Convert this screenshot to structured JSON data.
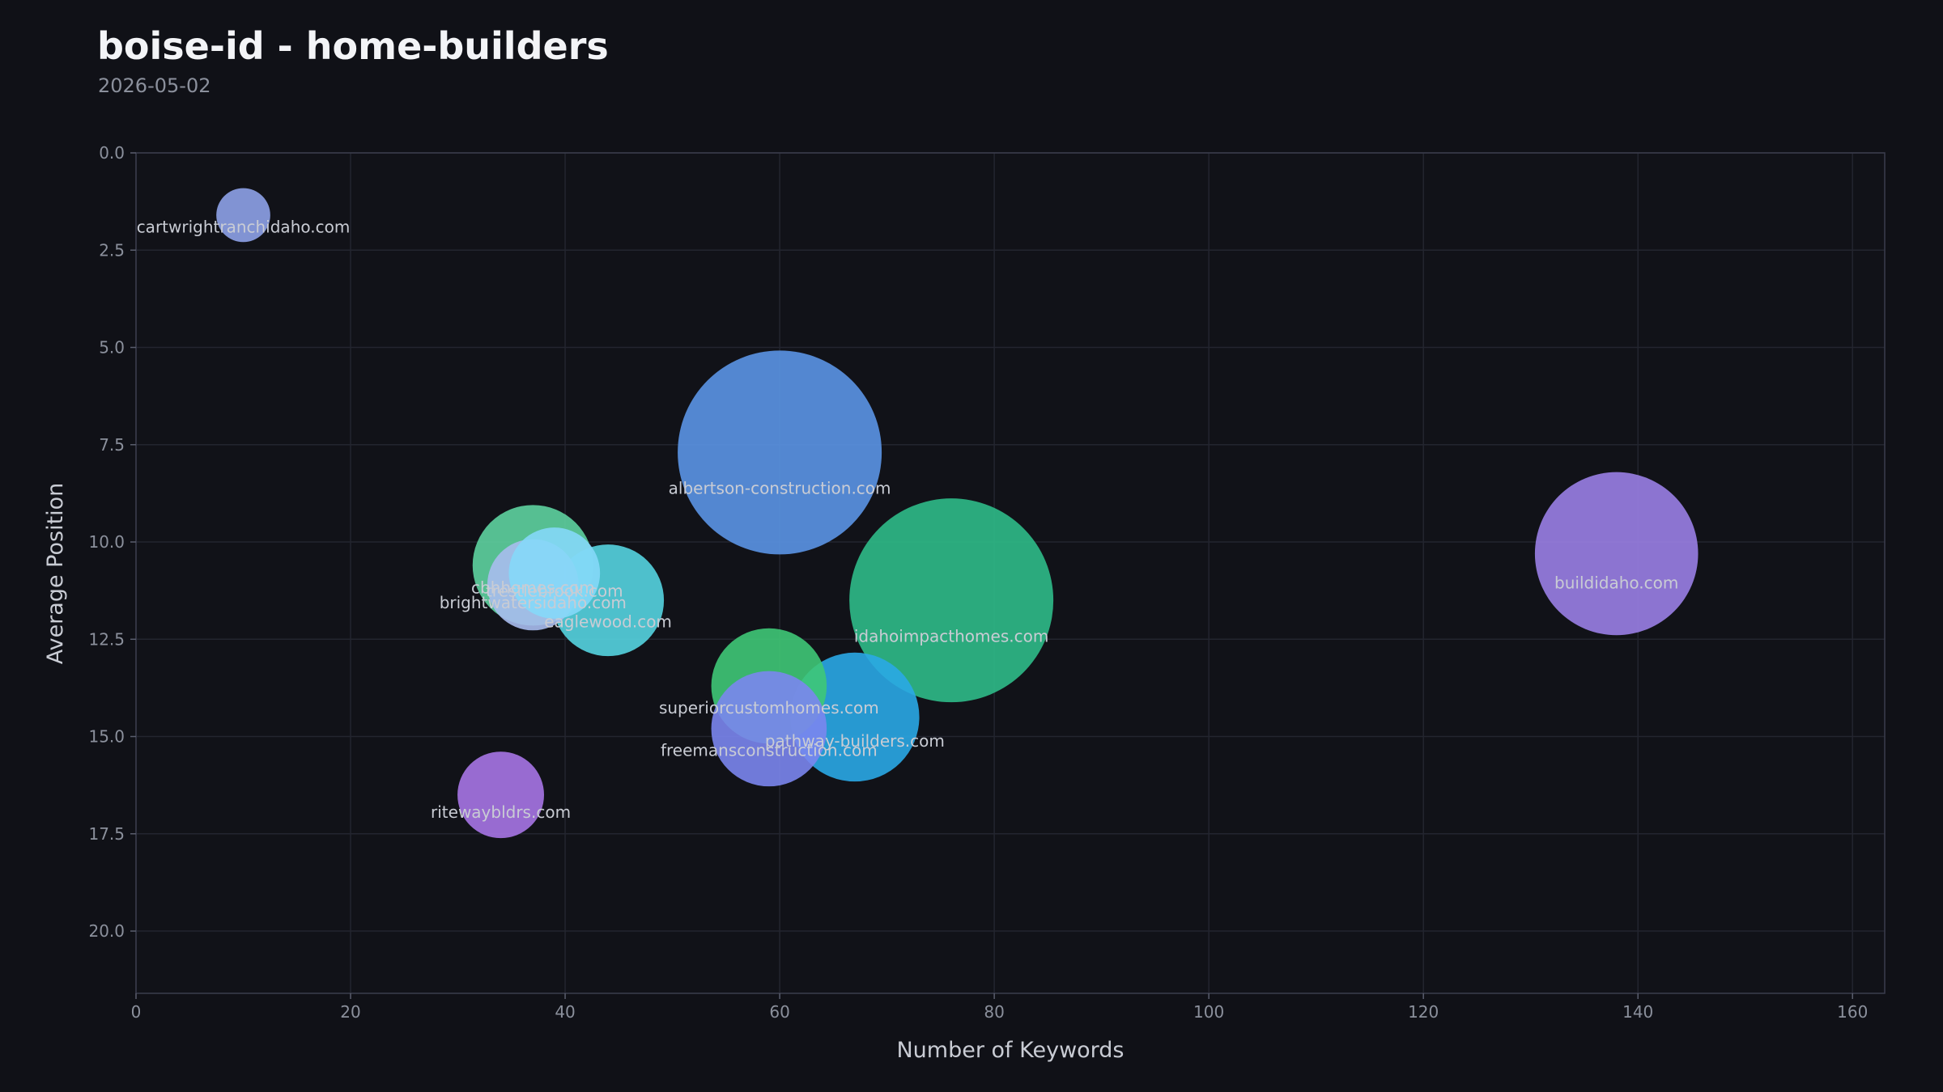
{
  "header": {
    "title": "boise-id - home-builders",
    "subtitle": "2026-05-02"
  },
  "colors": {
    "background": "#101117",
    "plot_background": "#111218",
    "grid": "#23252f",
    "axis": "#3a3d4d"
  },
  "chart_data": {
    "type": "scatter",
    "variant": "bubble",
    "title": "boise-id - home-builders",
    "subtitle": "2026-05-02",
    "xlabel": "Number of Keywords",
    "ylabel": "Average Position",
    "xlim": [
      0,
      163
    ],
    "ylim": [
      21.6,
      0
    ],
    "y_inverted": true,
    "xticks": [
      0,
      20,
      40,
      60,
      80,
      100,
      120,
      140,
      160
    ],
    "yticks": [
      0.0,
      2.5,
      5.0,
      7.5,
      10.0,
      12.5,
      15.0,
      17.5,
      20.0
    ],
    "ytick_labels": [
      "0.0",
      "2.5",
      "5.0",
      "7.5",
      "10.0",
      "12.5",
      "15.0",
      "17.5",
      "20.0"
    ],
    "grid": true,
    "legend": "none",
    "points": [
      {
        "label": "albertson-construction.com",
        "x": 60,
        "y": 7.7,
        "size": 100,
        "color": "#5b95e6"
      },
      {
        "label": "idahoimpacthomes.com",
        "x": 76,
        "y": 11.5,
        "size": 100,
        "color": "#2fbb88"
      },
      {
        "label": "buildidaho.com",
        "x": 138,
        "y": 10.3,
        "size": 64,
        "color": "#9a7fe6"
      },
      {
        "label": "pathway-builders.com",
        "x": 67,
        "y": 14.5,
        "size": 40,
        "color": "#2aa9e6"
      },
      {
        "label": "superiorcustomhomes.com",
        "x": 59,
        "y": 13.7,
        "size": 32,
        "color": "#3fc877"
      },
      {
        "label": "freemansconstruction.com",
        "x": 59,
        "y": 14.8,
        "size": 32,
        "color": "#7b86ee"
      },
      {
        "label": "cbhhomes.com",
        "x": 37,
        "y": 10.6,
        "size": 35,
        "color": "#5ed3a0"
      },
      {
        "label": "brightwatersidaho.com",
        "x": 37,
        "y": 11.1,
        "size": 20,
        "color": "#a9bcee"
      },
      {
        "label": "trestlebrook.com",
        "x": 39,
        "y": 10.8,
        "size": 20,
        "color": "#85d8f8"
      },
      {
        "label": "eaglewood.com",
        "x": 44,
        "y": 11.5,
        "size": 30,
        "color": "#55d4e0"
      },
      {
        "label": "ritewaybldrs.com",
        "x": 34,
        "y": 16.5,
        "size": 18,
        "color": "#a775e6"
      },
      {
        "label": "cartwrightranchidaho.com",
        "x": 10,
        "y": 1.6,
        "size": 7,
        "color": "#8ea2e8"
      }
    ]
  }
}
